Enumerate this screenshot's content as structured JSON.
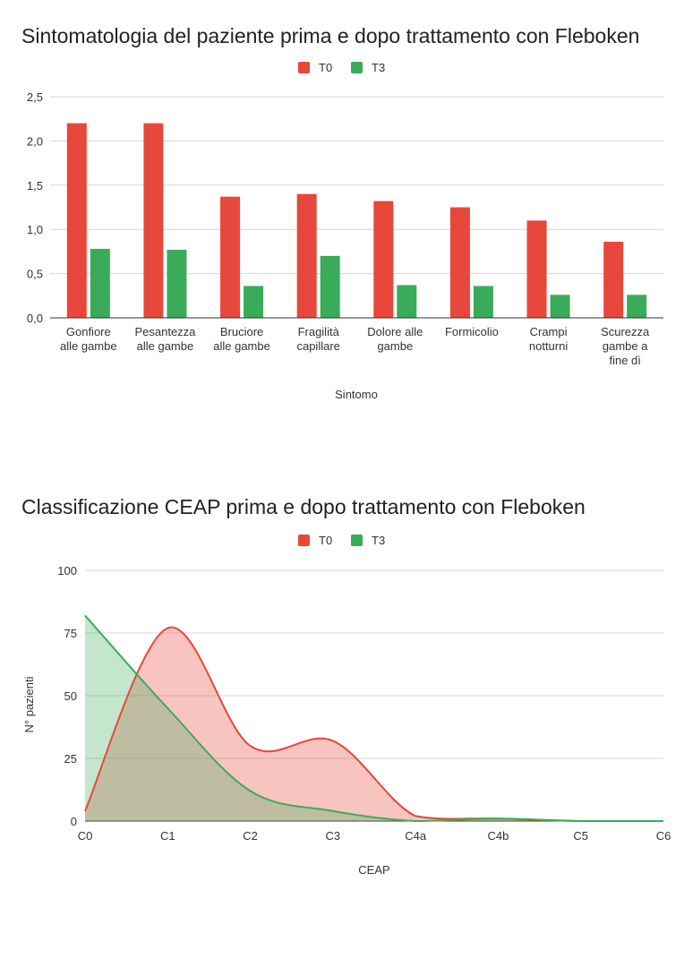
{
  "chart_data": [
    {
      "type": "bar",
      "title": "Sintomatologia del paziente prima e dopo trattamento con Fleboken",
      "xlabel": "Sintomo",
      "ylabel": "",
      "ylim": [
        0,
        2.5
      ],
      "yticks": [
        "0,0",
        "0,5",
        "1,0",
        "1,5",
        "2,0",
        "2,5"
      ],
      "legend_position": "top-center",
      "grid": true,
      "categories": [
        [
          "Gonfiore",
          "alle gambe"
        ],
        [
          "Pesantezza",
          "alle gambe"
        ],
        [
          "Bruciore",
          "alle gambe"
        ],
        [
          "Fragilità",
          "capillare"
        ],
        [
          "Dolore alle",
          "gambe"
        ],
        [
          "Formicolio"
        ],
        [
          "Crampi",
          "notturni"
        ],
        [
          "Scurezza",
          "gambe a",
          "fine dì"
        ]
      ],
      "series": [
        {
          "name": "T0",
          "color": "#e8473b",
          "values": [
            2.2,
            2.2,
            1.37,
            1.4,
            1.32,
            1.25,
            1.1,
            0.86
          ]
        },
        {
          "name": "T3",
          "color": "#3aab58",
          "values": [
            0.78,
            0.77,
            0.36,
            0.7,
            0.37,
            0.36,
            0.26,
            0.26
          ]
        }
      ]
    },
    {
      "type": "area",
      "title": "Classificazione CEAP prima e dopo trattamento con Fleboken",
      "xlabel": "CEAP",
      "ylabel": "N° pazienti",
      "ylim": [
        0,
        100
      ],
      "yticks": [
        "0",
        "25",
        "50",
        "75",
        "100"
      ],
      "legend_position": "top-center",
      "grid": true,
      "categories": [
        "C0",
        "C1",
        "C2",
        "C3",
        "C4a",
        "C4b",
        "C5",
        "C6"
      ],
      "series": [
        {
          "name": "T0",
          "color": "#e8473b",
          "values": [
            4,
            77,
            30,
            32,
            2,
            1,
            0,
            0
          ]
        },
        {
          "name": "T3",
          "color": "#3aab58",
          "values": [
            82,
            45,
            12,
            4,
            0,
            1,
            0,
            0
          ]
        }
      ]
    }
  ]
}
